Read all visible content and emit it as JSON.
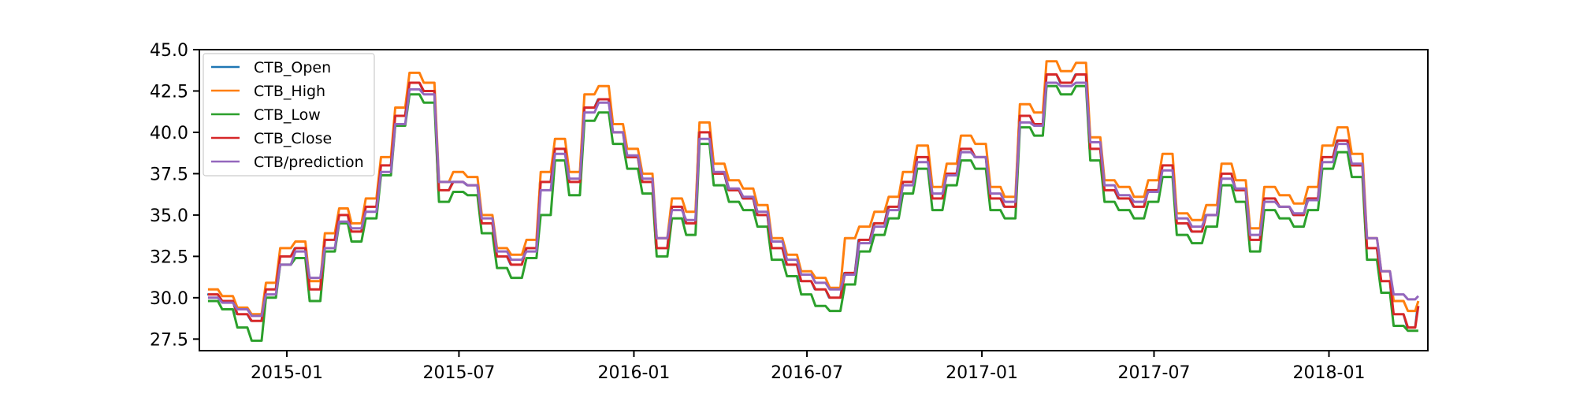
{
  "chart_data": {
    "type": "line",
    "title": "",
    "xlabel": "",
    "ylabel": "",
    "ylim": [
      26.8,
      45.0
    ],
    "xlim": [
      "2014-10-01",
      "2018-04-15"
    ],
    "grid": false,
    "legend_position": "upper-left",
    "y_ticks": [
      "27.5",
      "30.0",
      "32.5",
      "35.0",
      "37.5",
      "40.0",
      "42.5",
      "45.0"
    ],
    "x_ticks": [
      {
        "date": "2015-01-01",
        "label": "2015-01"
      },
      {
        "date": "2015-07-01",
        "label": "2015-07"
      },
      {
        "date": "2016-01-01",
        "label": "2016-01"
      },
      {
        "date": "2016-07-01",
        "label": "2016-07"
      },
      {
        "date": "2017-01-01",
        "label": "2017-01"
      },
      {
        "date": "2017-07-01",
        "label": "2017-07"
      },
      {
        "date": "2018-01-01",
        "label": "2018-01"
      }
    ],
    "series": [
      {
        "name": "CTB_Open",
        "color": "#1f77b4"
      },
      {
        "name": "CTB_High",
        "color": "#ff7f0e"
      },
      {
        "name": "CTB_Low",
        "color": "#2ca02c"
      },
      {
        "name": "CTB_Close",
        "color": "#d62728"
      },
      {
        "name": "CTB/prediction",
        "color": "#9467bd"
      }
    ],
    "x": [
      "2014-10-10",
      "2014-10-25",
      "2014-11-10",
      "2014-11-25",
      "2014-12-10",
      "2014-12-25",
      "2015-01-10",
      "2015-01-25",
      "2015-02-10",
      "2015-02-25",
      "2015-03-10",
      "2015-03-25",
      "2015-04-10",
      "2015-04-25",
      "2015-05-10",
      "2015-05-25",
      "2015-06-10",
      "2015-06-25",
      "2015-07-10",
      "2015-07-25",
      "2015-08-10",
      "2015-08-25",
      "2015-09-10",
      "2015-09-25",
      "2015-10-10",
      "2015-10-25",
      "2015-11-10",
      "2015-11-25",
      "2015-12-10",
      "2015-12-25",
      "2016-01-10",
      "2016-01-25",
      "2016-02-10",
      "2016-02-25",
      "2016-03-10",
      "2016-03-25",
      "2016-04-10",
      "2016-04-25",
      "2016-05-10",
      "2016-05-25",
      "2016-06-10",
      "2016-06-25",
      "2016-07-10",
      "2016-07-25",
      "2016-08-10",
      "2016-08-25",
      "2016-09-10",
      "2016-09-25",
      "2016-10-10",
      "2016-10-25",
      "2016-11-10",
      "2016-11-25",
      "2016-12-10",
      "2016-12-25",
      "2017-01-10",
      "2017-01-25",
      "2017-02-10",
      "2017-02-25",
      "2017-03-10",
      "2017-03-25",
      "2017-04-10",
      "2017-04-25",
      "2017-05-10",
      "2017-05-25",
      "2017-06-10",
      "2017-06-25",
      "2017-07-10",
      "2017-07-25",
      "2017-08-10",
      "2017-08-25",
      "2017-09-10",
      "2017-09-25",
      "2017-10-10",
      "2017-10-25",
      "2017-11-10",
      "2017-11-25",
      "2017-12-10",
      "2017-12-25",
      "2018-01-10",
      "2018-01-25",
      "2018-02-10",
      "2018-02-25",
      "2018-03-10",
      "2018-03-25",
      "2018-04-05"
    ],
    "close": [
      30.2,
      29.8,
      29.0,
      28.6,
      30.5,
      32.5,
      33.0,
      30.5,
      33.5,
      35.0,
      34.0,
      35.5,
      38.0,
      41.0,
      43.0,
      42.5,
      36.5,
      37.0,
      36.8,
      34.5,
      32.5,
      32.0,
      33.0,
      37.0,
      39.0,
      37.0,
      41.5,
      42.0,
      40.0,
      38.5,
      37.0,
      33.0,
      35.5,
      34.5,
      40.0,
      37.5,
      36.5,
      36.0,
      35.0,
      33.0,
      32.0,
      31.0,
      30.5,
      30.0,
      31.5,
      33.5,
      34.5,
      35.5,
      37.0,
      38.5,
      36.0,
      37.5,
      39.0,
      38.5,
      36.0,
      35.5,
      41.0,
      40.5,
      43.5,
      43.0,
      43.5,
      39.0,
      36.5,
      36.0,
      35.5,
      36.5,
      38.0,
      34.5,
      34.0,
      35.0,
      37.5,
      36.5,
      33.5,
      36.0,
      35.5,
      35.0,
      36.0,
      38.5,
      39.5,
      38.0,
      33.0,
      31.0,
      29.0,
      28.2,
      29.5
    ],
    "high": [
      30.5,
      30.1,
      29.4,
      29.0,
      30.9,
      33.0,
      33.4,
      31.0,
      33.9,
      35.4,
      34.5,
      36.0,
      38.5,
      41.5,
      43.6,
      43.0,
      37.0,
      37.6,
      37.3,
      35.0,
      33.0,
      32.6,
      33.5,
      37.6,
      39.6,
      37.6,
      42.3,
      42.8,
      40.5,
      39.0,
      37.5,
      33.6,
      36.0,
      35.2,
      40.6,
      38.1,
      37.1,
      36.6,
      35.6,
      33.6,
      32.6,
      31.6,
      31.2,
      30.6,
      33.6,
      34.3,
      35.2,
      36.1,
      37.6,
      39.2,
      36.7,
      38.1,
      39.8,
      39.3,
      36.7,
      36.1,
      41.7,
      41.2,
      44.3,
      43.7,
      44.2,
      39.7,
      37.1,
      36.7,
      36.1,
      37.1,
      38.7,
      35.1,
      34.7,
      35.6,
      38.1,
      37.1,
      34.2,
      36.7,
      36.2,
      35.7,
      36.7,
      39.2,
      40.3,
      38.7,
      33.6,
      31.6,
      29.8,
      29.2,
      29.8
    ],
    "low": [
      29.8,
      29.3,
      28.2,
      27.4,
      30.0,
      32.0,
      32.4,
      29.8,
      32.8,
      34.5,
      33.4,
      34.8,
      37.4,
      40.4,
      42.3,
      41.8,
      35.8,
      36.4,
      36.2,
      33.9,
      31.8,
      31.2,
      32.4,
      35.0,
      38.3,
      36.2,
      40.7,
      41.2,
      39.3,
      37.8,
      36.3,
      32.5,
      34.8,
      33.8,
      39.3,
      36.8,
      35.8,
      35.3,
      34.3,
      32.3,
      31.3,
      30.2,
      29.5,
      29.2,
      30.8,
      32.8,
      33.8,
      34.8,
      36.3,
      37.8,
      35.3,
      36.8,
      38.3,
      37.8,
      35.3,
      34.8,
      40.3,
      39.8,
      42.8,
      42.3,
      42.8,
      38.3,
      35.8,
      35.3,
      34.8,
      35.8,
      37.3,
      33.8,
      33.3,
      34.3,
      36.8,
      35.8,
      32.8,
      35.3,
      34.8,
      34.3,
      35.3,
      37.8,
      38.8,
      37.3,
      32.3,
      30.3,
      28.3,
      28.0,
      28.0
    ],
    "prediction": [
      30.0,
      29.7,
      29.3,
      28.9,
      30.2,
      32.0,
      32.8,
      31.2,
      33.0,
      34.6,
      34.2,
      35.2,
      37.6,
      40.5,
      42.6,
      42.3,
      37.0,
      37.0,
      36.8,
      34.8,
      32.8,
      32.3,
      32.8,
      36.5,
      38.7,
      37.2,
      41.2,
      41.8,
      40.0,
      38.6,
      37.2,
      33.6,
      35.3,
      34.7,
      39.6,
      37.6,
      36.6,
      36.1,
      35.2,
      33.4,
      32.3,
      31.4,
      30.9,
      30.5,
      31.4,
      33.3,
      34.3,
      35.3,
      36.8,
      38.2,
      36.3,
      37.4,
      38.8,
      38.5,
      36.3,
      35.8,
      40.6,
      40.4,
      43.0,
      42.8,
      43.0,
      39.4,
      36.8,
      36.2,
      35.8,
      36.4,
      37.7,
      34.8,
      34.3,
      35.0,
      37.2,
      36.6,
      33.8,
      35.8,
      35.5,
      35.1,
      35.9,
      38.2,
      39.3,
      38.1,
      33.6,
      31.6,
      30.2,
      29.9,
      30.1
    ]
  }
}
